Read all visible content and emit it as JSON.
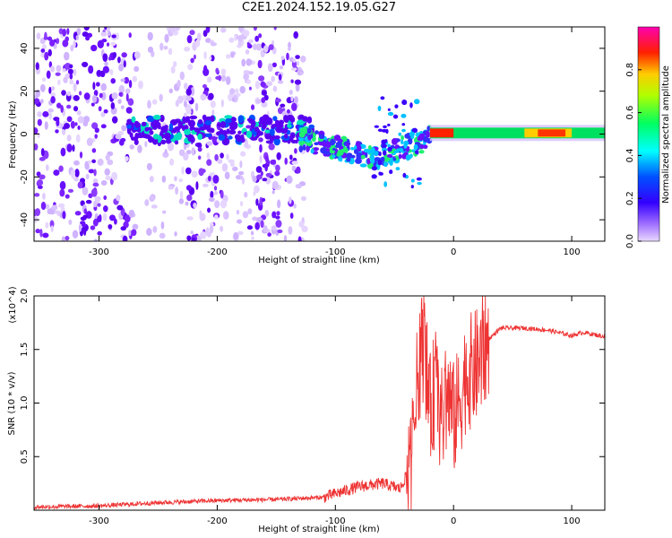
{
  "title": "C2E1.2024.152.19.05.G27",
  "colors": {
    "line": "#ee3333",
    "strong_band": "#00e060",
    "colorbar": [
      "#d8b8f8",
      "#6600ff",
      "#0000ff",
      "#00ffff",
      "#00ff00",
      "#ffff00",
      "#ff0000",
      "#ff00aa"
    ]
  },
  "chart_data": [
    {
      "type": "heatmap",
      "panel": "top",
      "xlabel": "Height of straight line (km)",
      "ylabel": "Frequency (Hz)",
      "xlim": [
        -355,
        128
      ],
      "ylim": [
        -50,
        50
      ],
      "xticks": [
        -300,
        -200,
        -100,
        0,
        100
      ],
      "yticks": [
        -40,
        -20,
        0,
        20,
        40
      ],
      "colorbar": {
        "label": "Normalized spectral amplitude",
        "range": [
          0.0,
          1.0
        ],
        "ticks": [
          0.0,
          0.2,
          0.4,
          0.6,
          0.8
        ]
      },
      "description_regions": [
        {
          "x": [
            -355,
            -270
          ],
          "y": [
            -50,
            50
          ],
          "amplitude": "low-scatter"
        },
        {
          "x": [
            -275,
            -125
          ],
          "y": [
            -5,
            10
          ],
          "amplitude": "medium band"
        },
        {
          "x": [
            -130,
            -20
          ],
          "y": [
            -25,
            15
          ],
          "amplitude": "rising structure"
        },
        {
          "x": [
            -20,
            128
          ],
          "y": [
            -2,
            3
          ],
          "amplitude": "strong band"
        }
      ]
    },
    {
      "type": "line",
      "panel": "bottom",
      "xlabel": "Height of straight line (km)",
      "ylabel": "SNR (10 * v/v)",
      "yscale_label": "(x10^4)",
      "xlim": [
        -355,
        128
      ],
      "ylim": [
        0,
        2.0
      ],
      "xticks": [
        -300,
        -200,
        -100,
        0,
        100
      ],
      "yticks": [
        0.5,
        1.0,
        1.5,
        2.0
      ],
      "series": [
        {
          "x": [
            -355,
            -300,
            -250,
            -200,
            -150,
            -110,
            -80,
            -60,
            -45,
            -35,
            -30,
            -25,
            -20,
            -15,
            -10,
            -5,
            0,
            5,
            10,
            20,
            30,
            40,
            60,
            80,
            100,
            110,
            128
          ],
          "y": [
            0.03,
            0.04,
            0.07,
            0.09,
            0.1,
            0.12,
            0.22,
            0.25,
            0.2,
            0.45,
            1.3,
            1.6,
            0.9,
            1.2,
            0.8,
            1.1,
            0.85,
            1.0,
            1.25,
            1.35,
            1.6,
            1.7,
            1.7,
            1.68,
            1.63,
            1.66,
            1.62
          ]
        }
      ]
    }
  ]
}
